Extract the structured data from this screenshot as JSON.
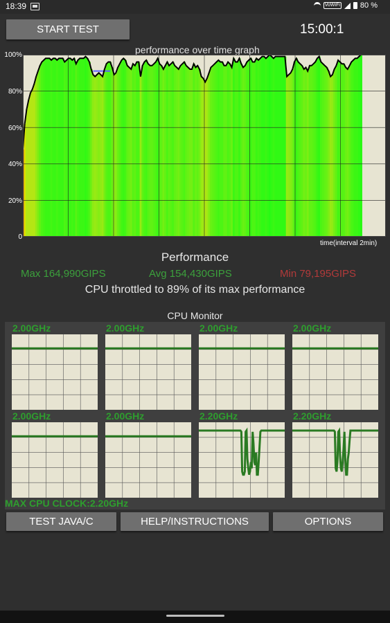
{
  "status_bar": {
    "time": "18:39",
    "network_badge": "VoWiFi",
    "battery": "80 %"
  },
  "controls": {
    "start_label": "START TEST",
    "timer": "15:00:1"
  },
  "graph": {
    "title": "performance over time graph",
    "x_label": "time(interval 2min)",
    "y_ticks": [
      "100%",
      "80%",
      "60%",
      "40%",
      "20%",
      "0"
    ]
  },
  "chart_data": {
    "type": "line",
    "title": "performance over time graph",
    "xlabel": "time(interval 2min)",
    "ylabel": "",
    "ylim": [
      0,
      100
    ],
    "x_interval_min": 2,
    "grid": true,
    "series": [
      {
        "values": [
          48,
          62,
          70,
          75,
          79,
          81,
          84,
          88,
          91,
          94,
          96,
          97,
          98,
          98,
          98,
          97,
          98,
          98,
          97,
          98,
          98,
          98,
          96,
          97,
          98,
          98,
          97,
          98,
          95,
          97,
          98,
          98,
          98,
          99,
          98,
          96,
          92,
          89,
          88,
          89,
          90,
          89,
          88,
          92,
          95,
          96,
          96,
          93,
          89,
          90,
          93,
          95,
          97,
          98,
          97,
          94,
          93,
          92,
          95,
          94,
          96,
          96,
          88,
          94,
          96,
          97,
          95,
          94,
          94,
          95,
          96,
          98,
          95,
          94,
          92,
          94,
          96,
          94,
          95,
          96,
          94,
          93,
          92,
          94,
          95,
          96,
          94,
          93,
          92,
          92,
          95,
          93,
          94,
          92,
          88,
          87,
          85,
          87,
          90,
          93,
          94,
          95,
          96,
          97,
          96,
          96,
          94,
          94,
          96,
          95,
          93,
          98,
          96,
          96,
          98,
          95,
          93,
          94,
          96,
          97,
          98,
          96,
          96,
          98,
          97,
          98,
          99,
          99,
          98,
          99,
          100,
          99,
          98,
          99,
          99,
          99,
          99,
          99,
          99,
          88,
          89,
          90,
          92,
          96,
          98,
          96,
          95,
          94,
          92,
          93,
          91,
          94,
          94,
          95,
          96,
          98,
          99,
          96,
          95,
          94,
          93,
          91,
          88,
          89,
          92,
          94,
          97,
          96,
          95,
          95,
          93,
          92,
          94,
          96,
          97,
          98,
          98,
          99,
          100
        ]
      }
    ],
    "band": {
      "values": [
        91,
        91,
        91
      ],
      "color": "#6060ff"
    }
  },
  "performance": {
    "title": "Performance",
    "max": "Max 164,990GIPS",
    "avg": "Avg 154,430GIPS",
    "min": "Min 79,195GIPS",
    "throttle": "CPU throttled to 89% of its max performance"
  },
  "cpu_monitor": {
    "title": "CPU Monitor",
    "max_clock": "MAX CPU CLOCK:2.20GHz",
    "cores": [
      {
        "label": "2.00GHz",
        "level": [
          0.91
        ]
      },
      {
        "label": "2.00GHz",
        "level": [
          0.91
        ]
      },
      {
        "label": "2.00GHz",
        "level": [
          0.91
        ]
      },
      {
        "label": "2.00GHz",
        "level": [
          0.91
        ]
      },
      {
        "label": "2.00GHz",
        "level": [
          0.91
        ]
      },
      {
        "label": "2.00GHz",
        "level": [
          0.91
        ]
      },
      {
        "label": "2.20GHz",
        "level": [
          1,
          1,
          1,
          1,
          1,
          1,
          1,
          1,
          1,
          1,
          1,
          1,
          1,
          1,
          1,
          1,
          1,
          1,
          1,
          1,
          1,
          1,
          1,
          1,
          1,
          1,
          1,
          1,
          1,
          1,
          1,
          1,
          1,
          1,
          1,
          1,
          1,
          1,
          1,
          1,
          1,
          1,
          1,
          1,
          1,
          1,
          1,
          1,
          1,
          0.98,
          0.35,
          0.3,
          0.3,
          0.35,
          0.98,
          1,
          0.55,
          0.4,
          0.3,
          0.35,
          0.5,
          0.4,
          0.98,
          0.8,
          0.5,
          0.45,
          0.65,
          0.3,
          0.3,
          0.5,
          0.75,
          0.98,
          1,
          1,
          1,
          1,
          1,
          1,
          1,
          1,
          1,
          1,
          1,
          1,
          1,
          1,
          1,
          1,
          1,
          1,
          1,
          1,
          1,
          1,
          1,
          1,
          1,
          1,
          1,
          1
        ]
      },
      {
        "label": "2.20GHz",
        "level": [
          1,
          1,
          1,
          1,
          1,
          1,
          1,
          1,
          1,
          1,
          1,
          1,
          1,
          1,
          1,
          1,
          1,
          1,
          1,
          1,
          1,
          1,
          1,
          1,
          1,
          1,
          1,
          1,
          1,
          1,
          1,
          1,
          1,
          1,
          1,
          1,
          1,
          1,
          1,
          1,
          1,
          1,
          1,
          1,
          1,
          1,
          1,
          1,
          1,
          0.98,
          0.4,
          0.35,
          0.5,
          0.98,
          1,
          0.6,
          0.4,
          0.35,
          0.5,
          0.7,
          0.98,
          0.55,
          0.3,
          0.3,
          0.55,
          0.65,
          0.85,
          1,
          1,
          1,
          1,
          1,
          1,
          1,
          1,
          1,
          1,
          1,
          1,
          1,
          1,
          1,
          1,
          1,
          1,
          1,
          1,
          1,
          1,
          1,
          1,
          1,
          1,
          1,
          1,
          1,
          1,
          1,
          1,
          1
        ]
      }
    ]
  },
  "buttons": {
    "java": "TEST JAVA/C",
    "help": "HELP/INSTRUCTIONS",
    "options": "OPTIONS"
  },
  "colors": {
    "background": "#2f2f2f",
    "button": "#6f6f6f",
    "graph_bg": "#e7e4d2",
    "green_text": "#3ca03c",
    "red_text": "#b23a3a",
    "cpu_line": "#2a7a22"
  }
}
